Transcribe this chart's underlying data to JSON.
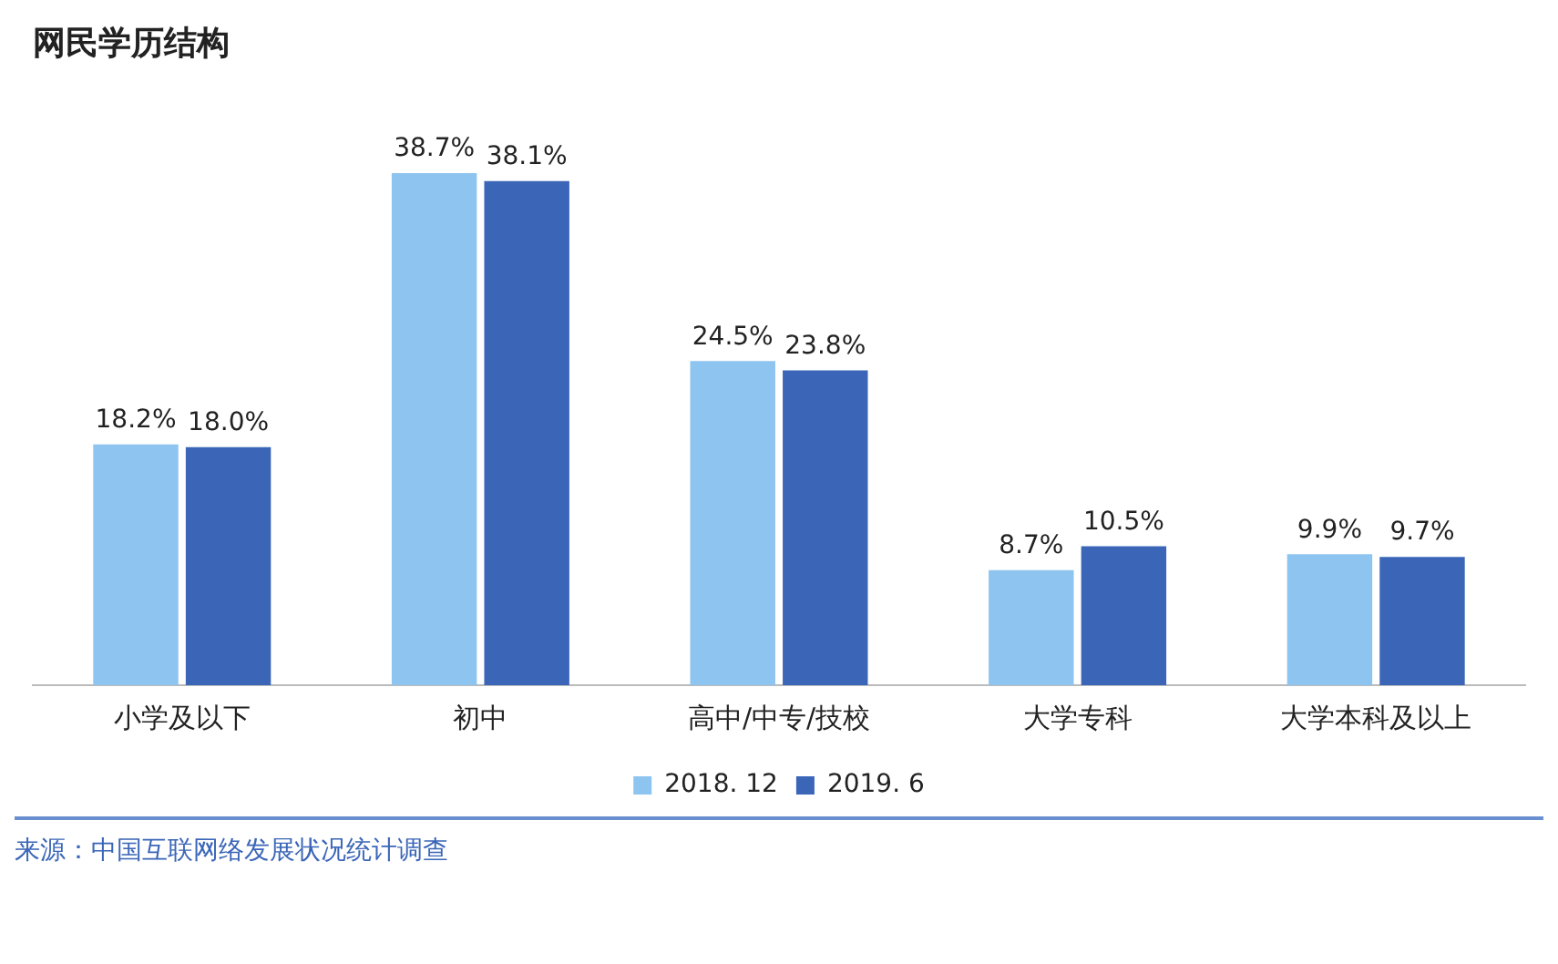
{
  "chart_data": {
    "type": "bar",
    "title": "网民学历结构",
    "categories": [
      "小学及以下",
      "初中",
      "高中/中专/技校",
      "大学专科",
      "大学本科及以上"
    ],
    "series": [
      {
        "name": "2018. 12",
        "color": "#8ec4f0",
        "values": [
          18.2,
          38.7,
          24.5,
          8.7,
          9.9
        ],
        "value_labels": [
          "18.2%",
          "38.7%",
          "24.5%",
          "8.7%",
          "9.9%"
        ]
      },
      {
        "name": "2019. 6",
        "color": "#3b66b8",
        "values": [
          18.0,
          38.1,
          23.8,
          10.5,
          9.7
        ],
        "value_labels": [
          "18.0%",
          "38.1%",
          "23.8%",
          "10.5%",
          "9.7%"
        ]
      }
    ],
    "grid": false,
    "legend": "bottom",
    "annotations": [
      "来源：中国互联网络发展状况统计调查"
    ]
  }
}
